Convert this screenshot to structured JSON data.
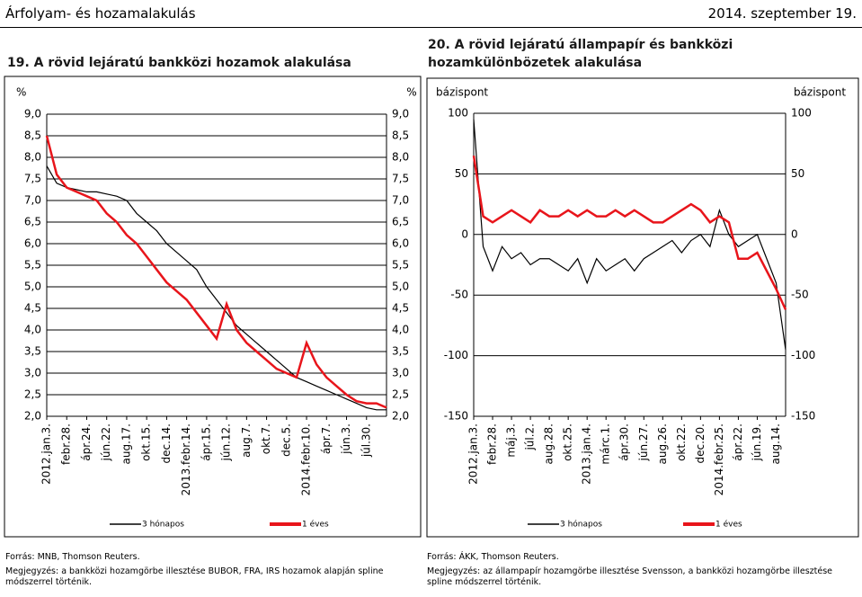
{
  "header": {
    "title": "Árfolyam- és hozamalakulás",
    "date": "2014. szeptember 19."
  },
  "chart_data": [
    {
      "type": "line",
      "title": "19. A rövid lejáratú bankközi hozamok alakulása",
      "ylabel": "%",
      "y2label": "%",
      "categories": [
        "2012.jan.3.",
        null,
        "febr.28.",
        null,
        "ápr.24.",
        null,
        "jún.22.",
        null,
        "aug.17.",
        null,
        "okt.15.",
        null,
        "dec.14.",
        null,
        "2013.febr.14.",
        null,
        "ápr.15.",
        null,
        "jún.12.",
        null,
        "aug.7.",
        null,
        "okt.7.",
        null,
        "dec.5.",
        null,
        "2014.febr.10.",
        null,
        "ápr.7.",
        null,
        "jún.3.",
        null,
        "júl.30.",
        null,
        null
      ],
      "series": [
        {
          "name": "3 hónapos",
          "color": "#000000",
          "values": [
            7.8,
            7.4,
            7.3,
            7.25,
            7.2,
            7.2,
            7.15,
            7.1,
            7.0,
            6.7,
            6.5,
            6.3,
            6.0,
            5.8,
            5.6,
            5.4,
            5.0,
            4.7,
            4.4,
            4.1,
            3.9,
            3.7,
            3.5,
            3.3,
            3.1,
            2.9,
            2.8,
            2.7,
            2.6,
            2.5,
            2.4,
            2.3,
            2.2,
            2.15,
            2.15
          ]
        },
        {
          "name": "1 éves",
          "color": "#e8151b",
          "values": [
            8.5,
            7.6,
            7.3,
            7.2,
            7.1,
            7.0,
            6.7,
            6.5,
            6.2,
            6.0,
            5.7,
            5.4,
            5.1,
            4.9,
            4.7,
            4.4,
            4.1,
            3.8,
            4.6,
            4.0,
            3.7,
            3.5,
            3.3,
            3.1,
            3.0,
            2.9,
            3.7,
            3.2,
            2.9,
            2.7,
            2.5,
            2.35,
            2.3,
            2.3,
            2.2
          ]
        }
      ],
      "ylim": [
        2.0,
        9.0
      ],
      "yticks": [
        {
          "value": 2.0,
          "label": "2,0"
        },
        {
          "value": 2.5,
          "label": "2,5"
        },
        {
          "value": 3.0,
          "label": "3,0"
        },
        {
          "value": 3.5,
          "label": "3,5"
        },
        {
          "value": 4.0,
          "label": "4,0"
        },
        {
          "value": 4.5,
          "label": "4,5"
        },
        {
          "value": 5.0,
          "label": "5,0"
        },
        {
          "value": 5.5,
          "label": "5,5"
        },
        {
          "value": 6.0,
          "label": "6,0"
        },
        {
          "value": 6.5,
          "label": "6,5"
        },
        {
          "value": 7.0,
          "label": "7,0"
        },
        {
          "value": 7.5,
          "label": "7,5"
        },
        {
          "value": 8.0,
          "label": "8,0"
        },
        {
          "value": 8.5,
          "label": "8,5"
        },
        {
          "value": 9.0,
          "label": "9,0"
        }
      ],
      "grid": true,
      "source": "Forrás: MNB, Thomson Reuters.",
      "note": "Megjegyzés: a bankközi hozamgörbe illesztése BUBOR, FRA, IRS hozamok alapján spline módszerrel történik."
    },
    {
      "type": "line",
      "title": "20. A rövid lejáratú állampapír és bankközi hozamkülönbözetek alakulása",
      "ylabel": "bázispont",
      "y2label": "bázispont",
      "categories": [
        "2012.jan.3.",
        null,
        "febr.28.",
        null,
        "máj.3.",
        null,
        "júl.2.",
        null,
        "aug.28.",
        null,
        "okt.25.",
        null,
        "2013.jan.4.",
        null,
        "márc.1.",
        null,
        "ápr.30.",
        null,
        "jún.27.",
        null,
        "aug.26.",
        null,
        "okt.22.",
        null,
        "dec.20.",
        null,
        "2014.febr.25.",
        null,
        "ápr.22.",
        null,
        "jún.19.",
        null,
        "aug.14.",
        null
      ],
      "series": [
        {
          "name": "3 hónapos",
          "color": "#000000",
          "values": [
            95,
            -10,
            -30,
            -10,
            -20,
            -15,
            -25,
            -20,
            -20,
            -25,
            -30,
            -20,
            -40,
            -20,
            -30,
            -25,
            -20,
            -30,
            -20,
            -15,
            -10,
            -5,
            -15,
            -5,
            0,
            -10,
            20,
            0,
            -10,
            -5,
            0,
            -20,
            -40,
            -95
          ]
        },
        {
          "name": "1 éves",
          "color": "#e8151b",
          "values": [
            65,
            15,
            10,
            15,
            20,
            15,
            10,
            20,
            15,
            15,
            20,
            15,
            20,
            15,
            15,
            20,
            15,
            20,
            15,
            10,
            10,
            15,
            20,
            25,
            20,
            10,
            15,
            10,
            -20,
            -20,
            -15,
            -30,
            -45,
            -62
          ]
        }
      ],
      "ylim": [
        -150,
        100
      ],
      "yticks": [
        -150,
        -100,
        -50,
        0,
        50,
        100
      ],
      "grid": true,
      "source": "Forrás: ÁKK, Thomson Reuters.",
      "note": "Megjegyzés: az állampapír hozamgörbe illesztése Svensson, a bankközi hozamgörbe illesztése spline módszerrel történik."
    }
  ]
}
